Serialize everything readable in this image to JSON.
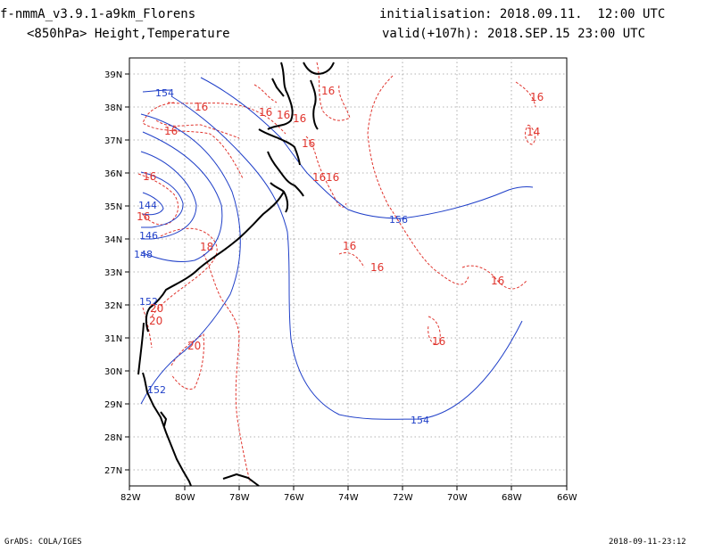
{
  "header": {
    "model_name": "f-nmmA_v3.9.1-a9km_Florens",
    "variable": "<850hPa> Height,Temperature",
    "initialisation": "initialisation: 2018.09.11.  12:00 UTC",
    "valid": "valid(+107h): 2018.SEP.15 23:00 UTC"
  },
  "footer": {
    "software": "GrADS: COLA/IGES",
    "timestamp": "2018-09-11-23:12"
  },
  "axes": {
    "lon_ticks": [
      "82W",
      "80W",
      "78W",
      "76W",
      "74W",
      "72W",
      "70W",
      "68W",
      "66W"
    ],
    "lat_ticks": [
      "27N",
      "28N",
      "29N",
      "30N",
      "31N",
      "32N",
      "33N",
      "34N",
      "35N",
      "36N",
      "37N",
      "38N",
      "39N"
    ]
  },
  "colors": {
    "height_contour": "#1f3fc8",
    "temperature_contour": "#e0342d",
    "coastline": "#000000",
    "grid": "#9a9a9a"
  },
  "height_contour_labels": [
    "154",
    "156",
    "154",
    "152",
    "152",
    "148",
    "146",
    "144"
  ],
  "temperature_contour_labels": [
    "16",
    "16",
    "16",
    "16",
    "16",
    "16",
    "16",
    "16",
    "16",
    "16",
    "16",
    "16",
    "16",
    "16",
    "16",
    "14",
    "18",
    "16",
    "20",
    "20",
    "20"
  ]
}
